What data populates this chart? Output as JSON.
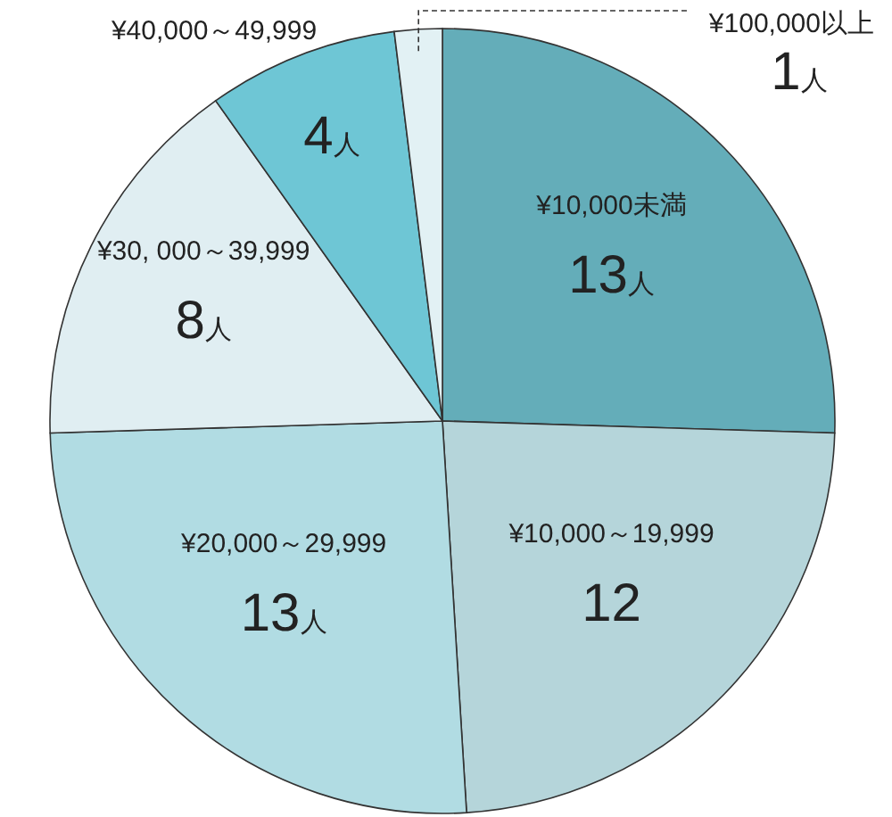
{
  "chart_data": {
    "type": "pie",
    "categories": [
      "¥10,000未満",
      "¥10,000～19,999",
      "¥20,000～29,999",
      "¥30, 000～39,999",
      "¥40,000～49,999",
      "¥100,000以上"
    ],
    "values": [
      13,
      12,
      13,
      8,
      4,
      1
    ],
    "value_labels": [
      "13人",
      "12",
      "13人",
      "8人",
      "4人",
      "1人"
    ],
    "colors": [
      "#64adb9",
      "#b5d5da",
      "#b1dce3",
      "#e0eef2",
      "#6ec6d5",
      "#e2f1f4"
    ]
  }
}
